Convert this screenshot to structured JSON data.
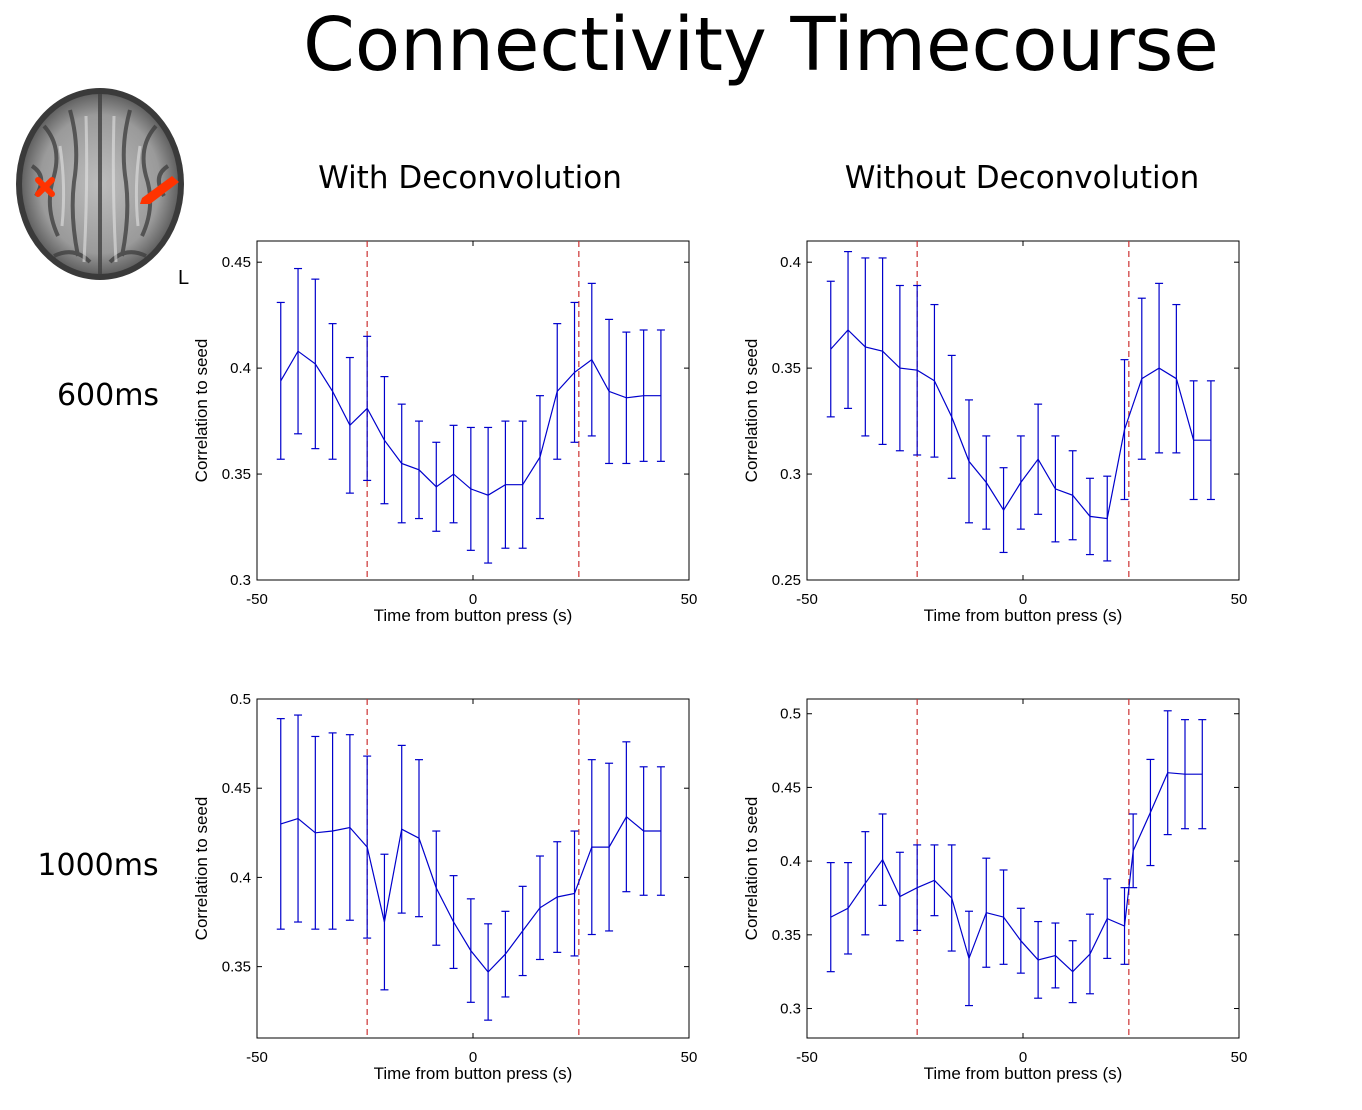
{
  "page": {
    "title": "Connectivity Timecourse",
    "column_titles": [
      "With Deconvolution",
      "Without Deconvolution"
    ],
    "row_labels": [
      "600ms",
      "1000ms"
    ],
    "brain_label": "L"
  },
  "colors": {
    "series": "#0000cc",
    "dashed": "#cc3333",
    "brain_marker": "#ff3300"
  },
  "chart_data": [
    {
      "id": "with-600",
      "type": "line",
      "title": "",
      "xlabel": "Time from button press (s)",
      "ylabel": "Correlation to seed",
      "xlim": [
        -50,
        50
      ],
      "ylim": [
        0.3,
        0.46
      ],
      "xticks": [
        -50,
        0,
        50
      ],
      "yticks": [
        0.3,
        0.35,
        0.4,
        0.45
      ],
      "vlines": [
        -24.5,
        24.5
      ],
      "x": [
        -44.5,
        -40.5,
        -36.5,
        -32.5,
        -28.5,
        -24.5,
        -20.5,
        -16.5,
        -12.5,
        -8.5,
        -4.5,
        -0.5,
        3.5,
        7.5,
        11.5,
        15.5,
        19.5,
        23.5,
        27.5,
        31.5,
        35.5,
        39.5,
        43.5
      ],
      "y": [
        0.394,
        0.408,
        0.402,
        0.389,
        0.373,
        0.381,
        0.366,
        0.355,
        0.352,
        0.344,
        0.35,
        0.343,
        0.34,
        0.345,
        0.345,
        0.358,
        0.389,
        0.398,
        0.404,
        0.389,
        0.386,
        0.387,
        0.387
      ],
      "err": [
        0.037,
        0.039,
        0.04,
        0.032,
        0.032,
        0.034,
        0.03,
        0.028,
        0.023,
        0.021,
        0.023,
        0.029,
        0.032,
        0.03,
        0.03,
        0.029,
        0.032,
        0.033,
        0.036,
        0.034,
        0.031,
        0.031,
        0.031
      ]
    },
    {
      "id": "without-600",
      "type": "line",
      "title": "",
      "xlabel": "Time from button press (s)",
      "ylabel": "Correlation to seed",
      "xlim": [
        -50,
        50
      ],
      "ylim": [
        0.25,
        0.41
      ],
      "xticks": [
        -50,
        0,
        50
      ],
      "yticks": [
        0.25,
        0.3,
        0.35,
        0.4
      ],
      "vlines": [
        -24.5,
        24.5
      ],
      "x": [
        -44.5,
        -40.5,
        -36.5,
        -32.5,
        -28.5,
        -24.5,
        -20.5,
        -16.5,
        -12.5,
        -8.5,
        -4.5,
        -0.5,
        3.5,
        7.5,
        11.5,
        15.5,
        19.5,
        23.5,
        27.5,
        31.5,
        35.5,
        39.5,
        43.5
      ],
      "y": [
        0.359,
        0.368,
        0.36,
        0.358,
        0.35,
        0.349,
        0.344,
        0.327,
        0.306,
        0.296,
        0.283,
        0.296,
        0.307,
        0.293,
        0.29,
        0.28,
        0.279,
        0.321,
        0.345,
        0.35,
        0.345,
        0.316,
        0.316
      ],
      "err": [
        0.032,
        0.037,
        0.042,
        0.044,
        0.039,
        0.04,
        0.036,
        0.029,
        0.029,
        0.022,
        0.02,
        0.022,
        0.026,
        0.025,
        0.021,
        0.018,
        0.02,
        0.033,
        0.038,
        0.04,
        0.035,
        0.028,
        0.028
      ]
    },
    {
      "id": "with-1000",
      "type": "line",
      "title": "",
      "xlabel": "Time from button press (s)",
      "ylabel": "Correlation to seed",
      "xlim": [
        -50,
        50
      ],
      "ylim": [
        0.31,
        0.5
      ],
      "xticks": [
        -50,
        0,
        50
      ],
      "yticks": [
        0.35,
        0.4,
        0.45,
        0.5
      ],
      "vlines": [
        -24.5,
        24.5
      ],
      "x": [
        -44.5,
        -40.5,
        -36.5,
        -32.5,
        -28.5,
        -24.5,
        -20.5,
        -16.5,
        -12.5,
        -8.5,
        -4.5,
        -0.5,
        3.5,
        7.5,
        11.5,
        15.5,
        19.5,
        23.5,
        27.5,
        31.5,
        35.5,
        39.5,
        43.5
      ],
      "y": [
        0.43,
        0.433,
        0.425,
        0.426,
        0.428,
        0.417,
        0.375,
        0.427,
        0.422,
        0.394,
        0.375,
        0.359,
        0.347,
        0.357,
        0.37,
        0.383,
        0.389,
        0.391,
        0.417,
        0.417,
        0.434,
        0.426,
        0.426
      ],
      "err": [
        0.059,
        0.058,
        0.054,
        0.055,
        0.052,
        0.051,
        0.038,
        0.047,
        0.044,
        0.032,
        0.026,
        0.029,
        0.027,
        0.024,
        0.025,
        0.029,
        0.031,
        0.035,
        0.049,
        0.047,
        0.042,
        0.036,
        0.036
      ]
    },
    {
      "id": "without-1000",
      "type": "line",
      "title": "",
      "xlabel": "Time from button press (s)",
      "ylabel": "Correlation to seed",
      "xlim": [
        -50,
        50
      ],
      "ylim": [
        0.28,
        0.51
      ],
      "xticks": [
        -50,
        0,
        50
      ],
      "yticks": [
        0.3,
        0.35,
        0.4,
        0.45,
        0.5
      ],
      "vlines": [
        -24.5,
        24.5
      ],
      "x": [
        -44.5,
        -40.5,
        -36.5,
        -32.5,
        -28.5,
        -24.5,
        -20.5,
        -16.5,
        -12.5,
        -8.5,
        -4.5,
        -0.5,
        3.5,
        7.5,
        11.5,
        15.5,
        19.5,
        23.5,
        25.5,
        29.5,
        33.5,
        37.5,
        41.5
      ],
      "y": [
        0.362,
        0.368,
        0.385,
        0.401,
        0.376,
        0.382,
        0.387,
        0.375,
        0.334,
        0.365,
        0.362,
        0.346,
        0.333,
        0.336,
        0.325,
        0.337,
        0.361,
        0.356,
        0.407,
        0.433,
        0.46,
        0.459,
        0.459
      ],
      "err": [
        0.037,
        0.031,
        0.035,
        0.031,
        0.03,
        0.029,
        0.024,
        0.036,
        0.032,
        0.037,
        0.032,
        0.022,
        0.026,
        0.022,
        0.021,
        0.027,
        0.027,
        0.026,
        0.025,
        0.036,
        0.042,
        0.037,
        0.037
      ]
    }
  ]
}
